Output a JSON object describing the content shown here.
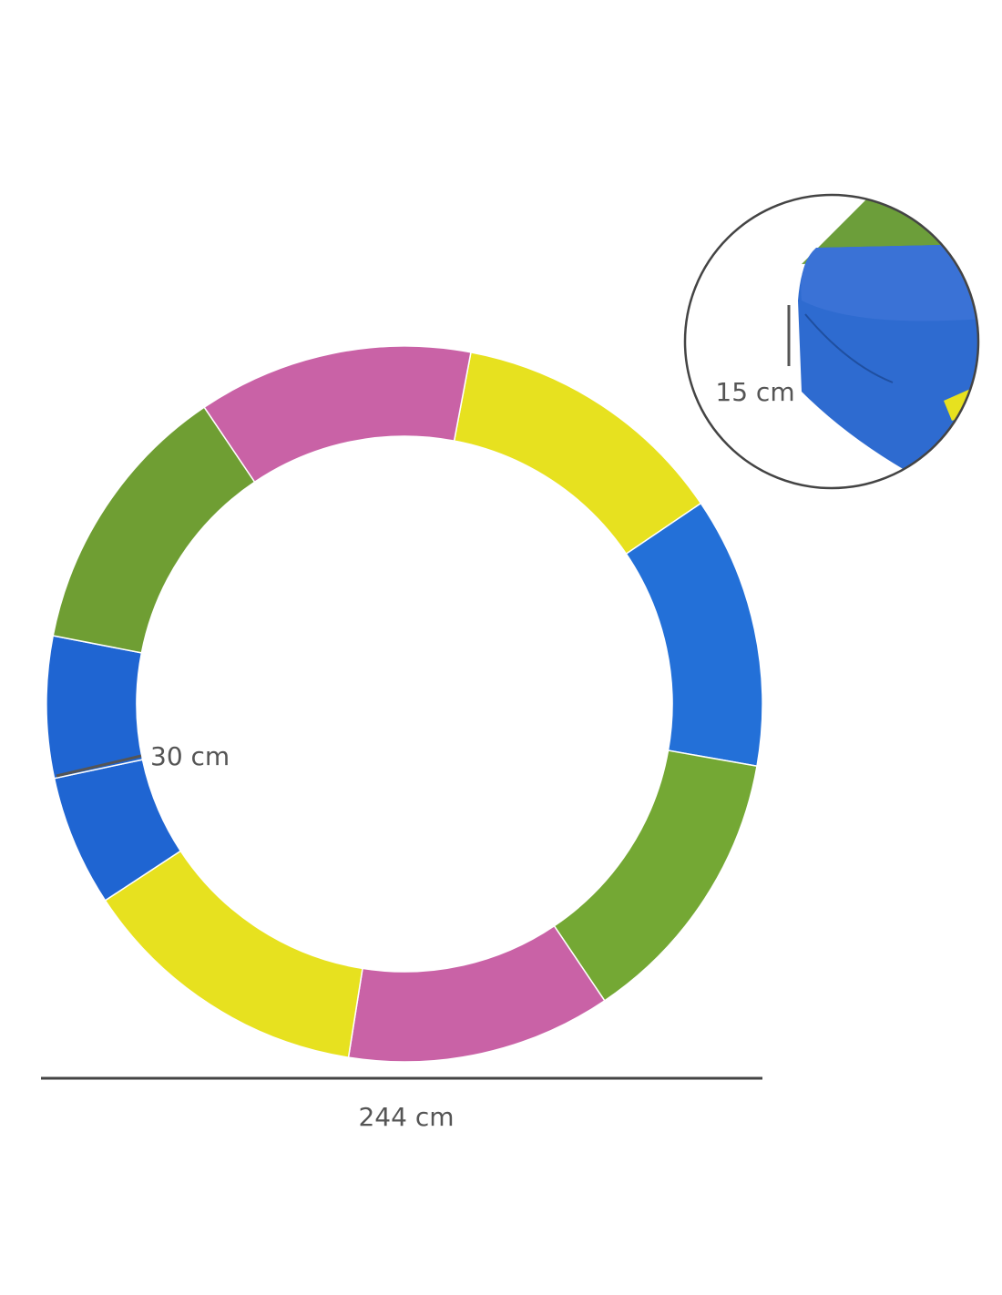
{
  "dimensions": {
    "pad_width": "30 cm",
    "pad_thickness": "15 cm",
    "diameter": "244 cm"
  }
}
